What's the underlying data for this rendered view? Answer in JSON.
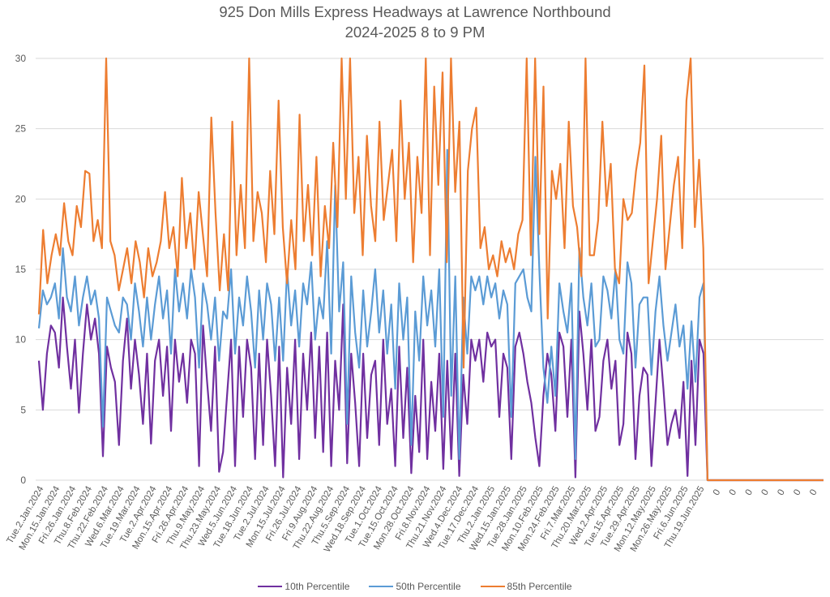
{
  "chart_data": {
    "type": "line",
    "title": "925 Don Mills Express Headways at Lawrence Northbound",
    "subtitle": "2024-2025 8 to 9 PM",
    "xlabel": "",
    "ylabel": "",
    "ylim": [
      0,
      30
    ],
    "yticks": [
      0,
      5,
      10,
      15,
      20,
      25,
      30
    ],
    "grid": true,
    "legend_position": "bottom",
    "tick_labels": [
      "Tue.2.Jan.2024",
      "Mon.15.Jan.2024",
      "Fri.26.Jan.2024",
      "Thu.8.Feb.2024",
      "Thu.22.Feb.2024",
      "Wed.6.Mar.2024",
      "Tue.19.Mar.2024",
      "Tue.2.Apr.2024",
      "Mon.15.Apr.2024",
      "Fri.26.Apr.2024",
      "Thu.9.May.2024",
      "Thu.23.May.2024",
      "Wed.5.Jun.2024",
      "Tue.18.Jun.2024",
      "Tue.2.Jul.2024",
      "Mon.15.Jul.2024",
      "Fri.26.Jul.2024",
      "Fri.9.Aug.2024",
      "Thu.22.Aug.2024",
      "Thu.5.Sep.2024",
      "Wed.18.Sep.2024",
      "Tue.1.Oct.2024",
      "Tue.15.Oct.2024",
      "Mon.28.Oct.2024",
      "Fri.8.Nov.2024",
      "Thu.21.Nov.2024",
      "Wed.4.Dec.2024",
      "Tue.17.Dec.2024",
      "Thu.2.Jan.2025",
      "Wed.15.Jan.2025",
      "Tue.28.Jan.2025",
      "Mon.10.Feb.2025",
      "Mon.24.Feb.2025",
      "Fri.7.Mar.2025",
      "Thu.20.Mar.2025",
      "Wed.2.Apr.2025",
      "Tue.15.Apr.2025",
      "Tue.29.Apr.2025",
      "Mon.12.May.2025",
      "Mon.26.May.2025",
      "Fri.6.Jun.2025",
      "Thu.19.Jun.2025",
      "0",
      "0",
      "0",
      "0",
      "0",
      "0",
      "0"
    ],
    "points_per_tick": 4,
    "series": [
      {
        "name": "10th Percentile",
        "color": "#7030A0",
        "values": [
          8.5,
          5.0,
          9.0,
          11.0,
          10.5,
          8.0,
          13.0,
          9.5,
          6.5,
          10.0,
          4.8,
          9.0,
          12.5,
          10.0,
          11.5,
          9.0,
          1.7,
          9.5,
          8.0,
          7.0,
          2.5,
          8.5,
          11.5,
          6.5,
          10.0,
          7.5,
          4.0,
          9.0,
          2.6,
          8.5,
          10.0,
          6.0,
          9.5,
          3.5,
          10.0,
          7.0,
          9.0,
          5.5,
          10.0,
          9.0,
          1.0,
          11.0,
          7.0,
          3.5,
          9.5,
          0.6,
          2.0,
          6.0,
          10.0,
          1.0,
          9.5,
          4.5,
          10.0,
          8.0,
          1.5,
          9.0,
          2.5,
          10.0,
          6.0,
          1.0,
          9.5,
          0.2,
          8.0,
          4.0,
          10.0,
          1.5,
          9.0,
          5.0,
          10.5,
          3.0,
          9.5,
          2.0,
          10.5,
          1.0,
          8.5,
          5.0,
          12.5,
          1.2,
          9.0,
          5.5,
          1.0,
          9.0,
          3.0,
          7.5,
          8.5,
          2.5,
          10.0,
          4.0,
          6.5,
          1.0,
          9.5,
          3.0,
          8.0,
          0.5,
          6.0,
          2.0,
          10.0,
          1.5,
          7.0,
          3.5,
          9.0,
          0.8,
          8.5,
          1.5,
          9.0,
          0.3,
          7.5,
          4.0,
          10.0,
          8.5,
          10.0,
          7.0,
          10.5,
          9.5,
          10.0,
          4.5,
          9.0,
          8.0,
          1.5,
          9.5,
          10.5,
          9.0,
          7.0,
          5.5,
          3.0,
          1.0,
          6.0,
          9.0,
          7.5,
          3.5,
          10.5,
          9.5,
          4.5,
          10.0,
          0.2,
          12.0,
          9.0,
          5.0,
          10.0,
          3.5,
          4.5,
          8.5,
          10.0,
          6.5,
          8.5,
          2.5,
          4.0,
          10.5,
          9.0,
          1.5,
          6.0,
          8.0,
          7.5,
          1.0,
          5.5,
          10.0,
          6.5,
          2.5,
          4.0,
          5.0,
          3.0,
          7.0,
          0.3,
          8.5,
          2.5,
          10.0,
          9.0,
          0
        ]
      },
      {
        "name": "50th Percentile",
        "color": "#5B9BD5",
        "values": [
          10.8,
          13.5,
          12.5,
          13.0,
          14.0,
          11.5,
          16.5,
          13.0,
          12.0,
          14.5,
          11.0,
          13.0,
          14.5,
          12.5,
          13.5,
          11.5,
          3.8,
          13.0,
          12.0,
          11.0,
          10.5,
          13.0,
          12.5,
          10.0,
          14.0,
          12.0,
          9.5,
          13.0,
          10.0,
          12.5,
          14.5,
          11.5,
          13.5,
          9.0,
          15.0,
          12.0,
          14.0,
          11.5,
          15.0,
          13.0,
          8.0,
          14.0,
          12.5,
          10.0,
          13.0,
          8.5,
          12.0,
          11.5,
          15.0,
          9.0,
          13.0,
          11.0,
          14.5,
          12.0,
          8.0,
          13.5,
          10.0,
          14.0,
          12.5,
          8.5,
          13.0,
          8.5,
          15.0,
          11.0,
          13.5,
          9.5,
          14.0,
          12.5,
          15.5,
          10.0,
          13.0,
          11.5,
          17.0,
          9.0,
          21.0,
          12.0,
          15.5,
          4.0,
          14.5,
          10.5,
          8.0,
          13.5,
          9.5,
          12.0,
          15.0,
          10.5,
          13.5,
          9.0,
          12.5,
          6.5,
          14.0,
          10.0,
          13.0,
          2.5,
          12.0,
          8.5,
          14.5,
          11.0,
          13.5,
          9.5,
          15.0,
          4.5,
          23.5,
          6.0,
          14.5,
          1.5,
          13.0,
          9.0,
          14.5,
          13.5,
          14.5,
          12.5,
          14.5,
          13.0,
          14.0,
          11.5,
          13.5,
          12.5,
          4.5,
          14.0,
          14.5,
          15.0,
          13.0,
          12.0,
          23.0,
          15.0,
          8.0,
          5.5,
          9.5,
          6.0,
          14.0,
          12.0,
          10.5,
          14.0,
          1.5,
          16.5,
          13.0,
          11.0,
          14.0,
          9.5,
          10.0,
          14.5,
          13.5,
          11.5,
          15.0,
          10.0,
          9.0,
          15.5,
          14.0,
          8.0,
          12.5,
          13.0,
          13.0,
          7.5,
          12.0,
          14.5,
          11.0,
          8.5,
          10.5,
          12.5,
          9.5,
          11.0,
          6.5,
          11.3,
          7.0,
          13.0,
          14.0,
          0
        ]
      },
      {
        "name": "85th Percentile",
        "color": "#ED7D31",
        "values": [
          11.8,
          17.8,
          14.0,
          16.0,
          17.5,
          16.0,
          19.7,
          17.0,
          16.0,
          19.5,
          18.0,
          22.0,
          21.8,
          17.0,
          18.5,
          16.5,
          30.0,
          17.0,
          16.0,
          13.5,
          15.0,
          16.5,
          14.0,
          17.0,
          15.5,
          13.0,
          16.5,
          14.5,
          15.5,
          17.0,
          20.5,
          16.5,
          18.0,
          14.5,
          21.5,
          16.5,
          19.0,
          15.0,
          20.5,
          17.5,
          14.5,
          25.8,
          19.0,
          13.5,
          17.5,
          13.5,
          25.5,
          16.0,
          21.0,
          16.5,
          30.0,
          17.0,
          20.5,
          19.0,
          15.5,
          22.0,
          17.5,
          27.0,
          18.0,
          14.0,
          18.5,
          15.0,
          26.0,
          17.0,
          21.0,
          16.0,
          23.0,
          14.5,
          19.5,
          16.5,
          24.0,
          18.0,
          30.0,
          20.0,
          30.0,
          19.0,
          23.0,
          16.0,
          24.5,
          19.5,
          17.0,
          25.5,
          18.5,
          21.0,
          23.5,
          17.0,
          27.0,
          20.0,
          24.0,
          15.5,
          23.0,
          19.0,
          30.0,
          16.0,
          28.0,
          21.0,
          29.0,
          15.5,
          30.0,
          20.5,
          25.5,
          8.0,
          22.0,
          25.0,
          26.5,
          16.5,
          18.0,
          15.0,
          16.0,
          14.5,
          17.0,
          15.5,
          16.5,
          15.0,
          17.5,
          18.5,
          30.0,
          16.0,
          30.0,
          17.5,
          28.0,
          11.5,
          22.0,
          20.0,
          22.5,
          16.5,
          25.5,
          19.5,
          18.0,
          14.5,
          30.0,
          16.0,
          16.0,
          18.5,
          25.5,
          19.5,
          22.5,
          15.0,
          14.0,
          20.0,
          18.5,
          19.0,
          22.0,
          24.0,
          29.5,
          14.0,
          17.0,
          20.0,
          24.5,
          15.0,
          18.0,
          21.0,
          23.0,
          16.5,
          27.0,
          30.0,
          18.0,
          22.8,
          16.5,
          0
        ]
      }
    ]
  },
  "legend": {
    "items": [
      "10th Percentile",
      "50th Percentile",
      "85th Percentile"
    ]
  }
}
